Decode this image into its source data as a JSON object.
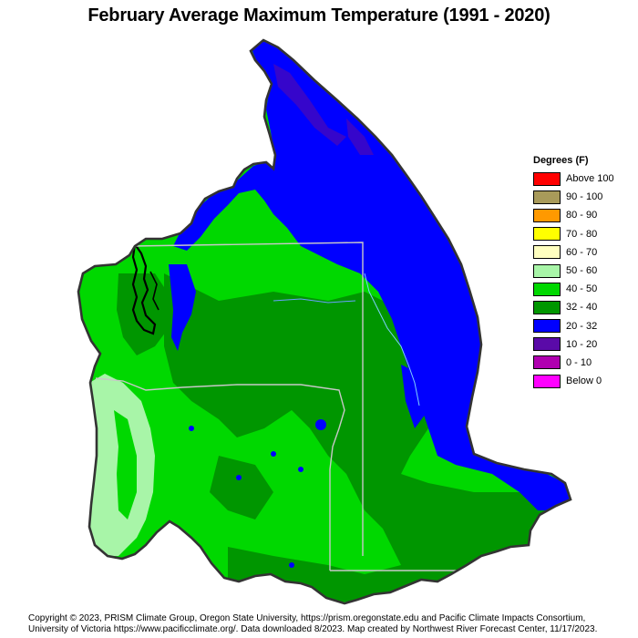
{
  "title": "February Average Maximum Temperature (1991 - 2020)",
  "legend": {
    "title": "Degrees (F)",
    "items": [
      {
        "label": "Above 100",
        "color": "#ff0000"
      },
      {
        "label": "90 - 100",
        "color": "#a89a5a"
      },
      {
        "label": "80 - 90",
        "color": "#ff9900"
      },
      {
        "label": "70 - 80",
        "color": "#ffff00"
      },
      {
        "label": "60 - 70",
        "color": "#ffffc0"
      },
      {
        "label": "50 - 60",
        "color": "#a8f5a8"
      },
      {
        "label": "40 - 50",
        "color": "#00d800"
      },
      {
        "label": "32 - 40",
        "color": "#009600"
      },
      {
        "label": "20 - 32",
        "color": "#0000ff"
      },
      {
        "label": "10 - 20",
        "color": "#5a0aa8"
      },
      {
        "label": "0 - 10",
        "color": "#b000b0"
      },
      {
        "label": "Below 0",
        "color": "#ff00ff"
      }
    ]
  },
  "footer": {
    "line1": "Copyright © 2023, PRISM Climate Group, Oregon State University, https://prism.oregonstate.edu and Pacific Climate Impacts Consortium,",
    "line2": "University of Victoria https://www.pacificclimate.org/.  Data downloaded 8/2023. Map created by Northwest River Forecast Center, 11/17/2023."
  }
}
